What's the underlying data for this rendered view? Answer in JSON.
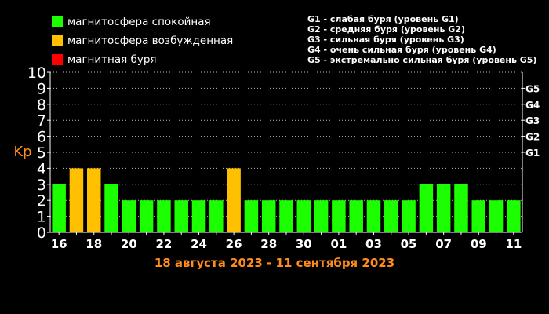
{
  "legend": {
    "items": [
      {
        "label": "магнитосфера спокойная",
        "color": "#1cff00"
      },
      {
        "label": "магнитосфера возбужденная",
        "color": "#ffc000"
      },
      {
        "label": "магнитная буря",
        "color": "#ff0000"
      }
    ]
  },
  "storm_levels": [
    "G1 - слабая буря (уровень G1)",
    "G2 - средняя буря (уровень G2)",
    "G3 - сильная буря (уровень G3)",
    "G4 - очень сильная буря (уровень G4)",
    "G5 - экстремально сильная буря (уровень G5)"
  ],
  "chart_data": {
    "type": "bar",
    "subtitle": "18 августа 2023 - 11 сентября 2023",
    "ylabel": "Kp",
    "ylim": [
      0,
      10
    ],
    "yticks": [
      0,
      1,
      2,
      3,
      4,
      5,
      6,
      7,
      8,
      9,
      10
    ],
    "right_ticks": [
      {
        "label": "G1",
        "value": 5
      },
      {
        "label": "G2",
        "value": 6
      },
      {
        "label": "G3",
        "value": 7
      },
      {
        "label": "G4",
        "value": 8
      },
      {
        "label": "G5",
        "value": 9
      }
    ],
    "x_tick_labels": [
      "16",
      "18",
      "20",
      "22",
      "24",
      "26",
      "28",
      "30",
      "01",
      "03",
      "05",
      "07",
      "09",
      "11"
    ],
    "values": [
      3,
      4,
      4,
      3,
      2,
      2,
      2,
      2,
      2,
      2,
      4,
      2,
      2,
      2,
      2,
      2,
      2,
      2,
      2,
      2,
      2,
      3,
      3,
      3,
      2,
      2,
      2
    ],
    "level_colors": {
      "quiet": "#1cff00",
      "active": "#ffc000",
      "storm": "#ff0000"
    },
    "grid": true
  }
}
